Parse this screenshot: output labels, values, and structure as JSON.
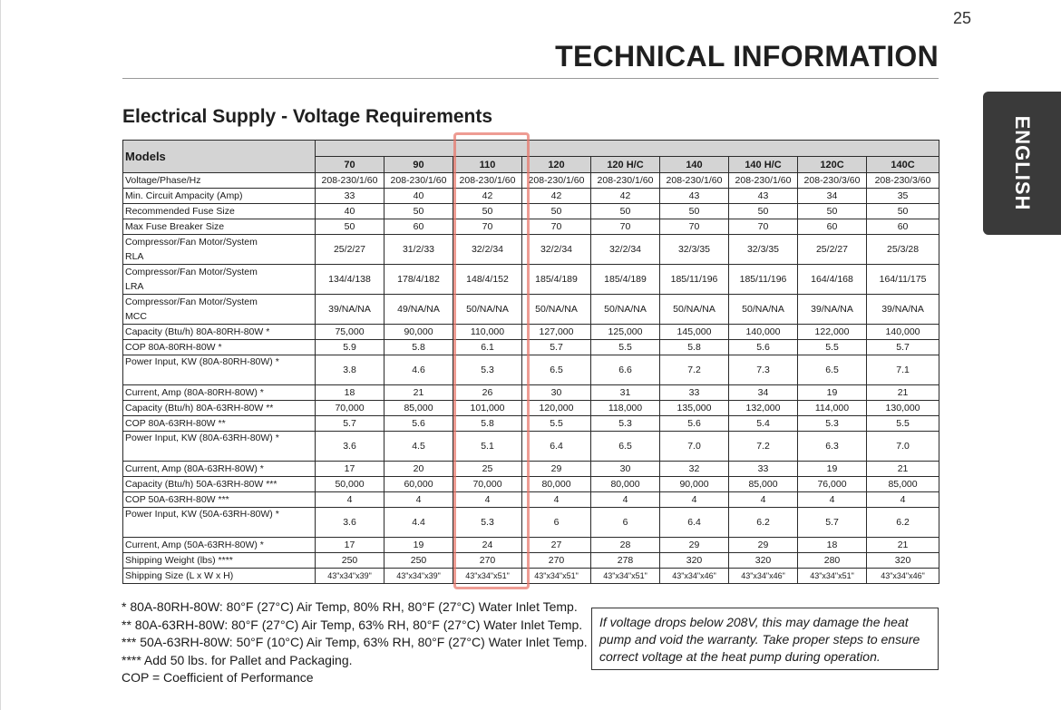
{
  "page_number": "25",
  "header_title": "TECHNICAL INFORMATION",
  "language_tab": "ENGLISH",
  "section_title": "Electrical Supply - Voltage Requirements",
  "table": {
    "models_label": "Models",
    "models": [
      "70",
      "90",
      "110",
      "120",
      "120 H/C",
      "140",
      "140 H/C",
      "120C",
      "140C"
    ],
    "rows": [
      {
        "label": [
          "Voltage/Phase/Hz"
        ],
        "values": [
          "208-230/1/60",
          "208-230/1/60",
          "208-230/1/60",
          "208-230/1/60",
          "208-230/1/60",
          "208-230/1/60",
          "208-230/1/60",
          "208-230/3/60",
          "208-230/3/60"
        ]
      },
      {
        "label": [
          "Min. Circuit Ampacity (Amp)"
        ],
        "values": [
          "33",
          "40",
          "42",
          "42",
          "42",
          "43",
          "43",
          "34",
          "35"
        ]
      },
      {
        "label": [
          "Recommended Fuse Size"
        ],
        "values": [
          "40",
          "50",
          "50",
          "50",
          "50",
          "50",
          "50",
          "50",
          "50"
        ]
      },
      {
        "label": [
          "Max Fuse Breaker Size"
        ],
        "values": [
          "50",
          "60",
          "70",
          "70",
          "70",
          "70",
          "70",
          "60",
          "60"
        ]
      },
      {
        "label": [
          "Compressor/Fan Motor/System",
          "RLA"
        ],
        "values": [
          "25/2/27",
          "31/2/33",
          "32/2/34",
          "32/2/34",
          "32/2/34",
          "32/3/35",
          "32/3/35",
          "25/2/27",
          "25/3/28"
        ]
      },
      {
        "label": [
          "Compressor/Fan Motor/System",
          "LRA"
        ],
        "values": [
          "134/4/138",
          "178/4/182",
          "148/4/152",
          "185/4/189",
          "185/4/189",
          "185/11/196",
          "185/11/196",
          "164/4/168",
          "164/11/175"
        ]
      },
      {
        "label": [
          "Compressor/Fan Motor/System",
          "MCC"
        ],
        "values": [
          "39/NA/NA",
          "49/NA/NA",
          "50/NA/NA",
          "50/NA/NA",
          "50/NA/NA",
          "50/NA/NA",
          "50/NA/NA",
          "39/NA/NA",
          "39/NA/NA"
        ]
      },
      {
        "label": [
          "Capacity (Btu/h) 80A-80RH-80W *"
        ],
        "values": [
          "75,000",
          "90,000",
          "110,000",
          "127,000",
          "125,000",
          "145,000",
          "140,000",
          "122,000",
          "140,000"
        ]
      },
      {
        "label": [
          "COP 80A-80RH-80W *"
        ],
        "values": [
          "5.9",
          "5.8",
          "6.1",
          "5.7",
          "5.5",
          "5.8",
          "5.6",
          "5.5",
          "5.7"
        ]
      },
      {
        "label": [
          "Power Input, KW (80A-80RH-80W) *"
        ],
        "top": true,
        "values": [
          "3.8",
          "4.6",
          "5.3",
          "6.5",
          "6.6",
          "7.2",
          "7.3",
          "6.5",
          "7.1"
        ]
      },
      {
        "label": [
          "Current, Amp (80A-80RH-80W) *"
        ],
        "values": [
          "18",
          "21",
          "26",
          "30",
          "31",
          "33",
          "34",
          "19",
          "21"
        ]
      },
      {
        "label": [
          "Capacity (Btu/h) 80A-63RH-80W **"
        ],
        "values": [
          "70,000",
          "85,000",
          "101,000",
          "120,000",
          "118,000",
          "135,000",
          "132,000",
          "114,000",
          "130,000"
        ]
      },
      {
        "label": [
          "COP 80A-63RH-80W **"
        ],
        "values": [
          "5.7",
          "5.6",
          "5.8",
          "5.5",
          "5.3",
          "5.6",
          "5.4",
          "5.3",
          "5.5"
        ]
      },
      {
        "label": [
          "Power Input, KW (80A-63RH-80W) *"
        ],
        "top": true,
        "values": [
          "3.6",
          "4.5",
          "5.1",
          "6.4",
          "6.5",
          "7.0",
          "7.2",
          "6.3",
          "7.0"
        ]
      },
      {
        "label": [
          "Current, Amp (80A-63RH-80W) *"
        ],
        "values": [
          "17",
          "20",
          "25",
          "29",
          "30",
          "32",
          "33",
          "19",
          "21"
        ]
      },
      {
        "label": [
          "Capacity (Btu/h) 50A-63RH-80W ***"
        ],
        "values": [
          "50,000",
          "60,000",
          "70,000",
          "80,000",
          "80,000",
          "90,000",
          "85,000",
          "76,000",
          "85,000"
        ]
      },
      {
        "label": [
          "COP 50A-63RH-80W ***"
        ],
        "values": [
          "4",
          "4",
          "4",
          "4",
          "4",
          "4",
          "4",
          "4",
          "4"
        ]
      },
      {
        "label": [
          "Power Input, KW (50A-63RH-80W) *"
        ],
        "top": true,
        "values": [
          "3.6",
          "4.4",
          "5.3",
          "6",
          "6",
          "6.4",
          "6.2",
          "5.7",
          "6.2"
        ]
      },
      {
        "label": [
          "Current, Amp (50A-63RH-80W) *"
        ],
        "values": [
          "17",
          "19",
          "24",
          "27",
          "28",
          "29",
          "29",
          "18",
          "21"
        ]
      },
      {
        "label": [
          "Shipping Weight (lbs) ****"
        ],
        "values": [
          "250",
          "250",
          "270",
          "270",
          "278",
          "320",
          "320",
          "280",
          "320"
        ]
      },
      {
        "label": [
          "Shipping Size (L x W x H)"
        ],
        "small": true,
        "values": [
          "43\"x34\"x39\"",
          "43\"x34\"x39\"",
          "43\"x34\"x51\"",
          "43\"x34\"x51\"",
          "43\"x34\"x51\"",
          "43\"x34\"x46\"",
          "43\"x34\"x46\"",
          "43\"x34\"x51\"",
          "43\"x34\"x46\""
        ]
      }
    ]
  },
  "footnotes": [
    "* 80A-80RH-80W:  80°F (27°C) Air Temp, 80% RH, 80°F (27°C) Water Inlet Temp.",
    "** 80A-63RH-80W:  80°F (27°C) Air Temp, 63% RH, 80°F (27°C) Water Inlet Temp.",
    "*** 50A-63RH-80W:  50°F (10°C) Air Temp, 63% RH, 80°F (27°C) Water Inlet Temp.",
    "**** Add 50 lbs. for Pallet and Packaging.",
    "COP = Coefficient of Performance"
  ],
  "warning": "If voltage drops below 208V, this may damage the heat pump and void the warranty. Take proper steps to ensure correct voltage at the heat pump during operation.",
  "colors": {
    "highlight": "#e8766a",
    "header_fill": "#d4d4d4",
    "tab_fill": "#3a3a3a"
  }
}
